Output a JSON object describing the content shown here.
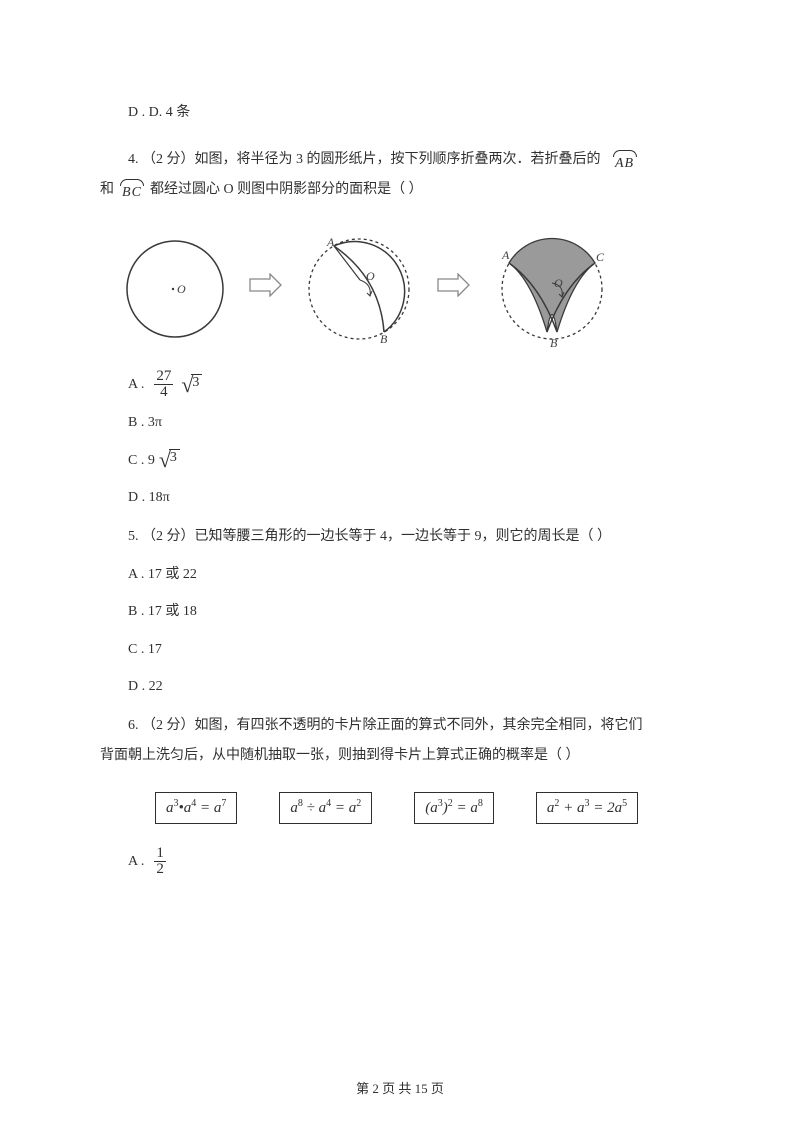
{
  "q3": {
    "option_d": "D . D. 4 条"
  },
  "q4": {
    "prefix": "4.  （2 分）如图，将半径为 3 的圆形纸片，按下列顺序折叠两次．若折叠后的",
    "arc1": "AB",
    "line2_pre": "和",
    "arc2": "BC",
    "line2_post": "都经过圆心 O 则图中阴影部分的面积是（    ）",
    "opt_a_pre": "A .",
    "opt_a_frac_num": "27",
    "opt_a_frac_den": "4",
    "opt_a_radicand": "3",
    "opt_b": "B . 3π",
    "opt_c_pre": "C . 9",
    "opt_c_radicand": "3",
    "opt_d": "D . 18π",
    "fig": {
      "labels": {
        "O": "O",
        "A": "A",
        "B": "B",
        "C": "C"
      },
      "stroke": "#3a3a3a",
      "dash": "3,3"
    }
  },
  "q5": {
    "text": "5. （2 分）已知等腰三角形的一边长等于 4，一边长等于 9，则它的周长是（    ）",
    "opt_a": "A . 17 或 22",
    "opt_b": "B . 17 或 18",
    "opt_c": "C . 17",
    "opt_d": "D . 22"
  },
  "q6": {
    "line1": "6. （2 分）如图，有四张不透明的卡片除正面的算式不同外，其余完全相同，将它们",
    "line2": "背面朝上洗匀后，从中随机抽取一张，则抽到得卡片上算式正确的概率是（    ）",
    "cards": {
      "c1": "a<sup>3</sup>•a<sup>4</sup> = a<sup>7</sup>",
      "c2": "a<sup>8</sup> ÷ a<sup>4</sup> = a<sup>2</sup>",
      "c3": "(a<sup>3</sup>)<sup>2</sup> = a<sup>8</sup>",
      "c4": "a<sup>2</sup> + a<sup>3</sup> = 2a<sup>5</sup>"
    },
    "opt_a_pre": "A .",
    "opt_a_num": "1",
    "opt_a_den": "2"
  },
  "footer": {
    "text": "第 2 页 共 15 页"
  }
}
